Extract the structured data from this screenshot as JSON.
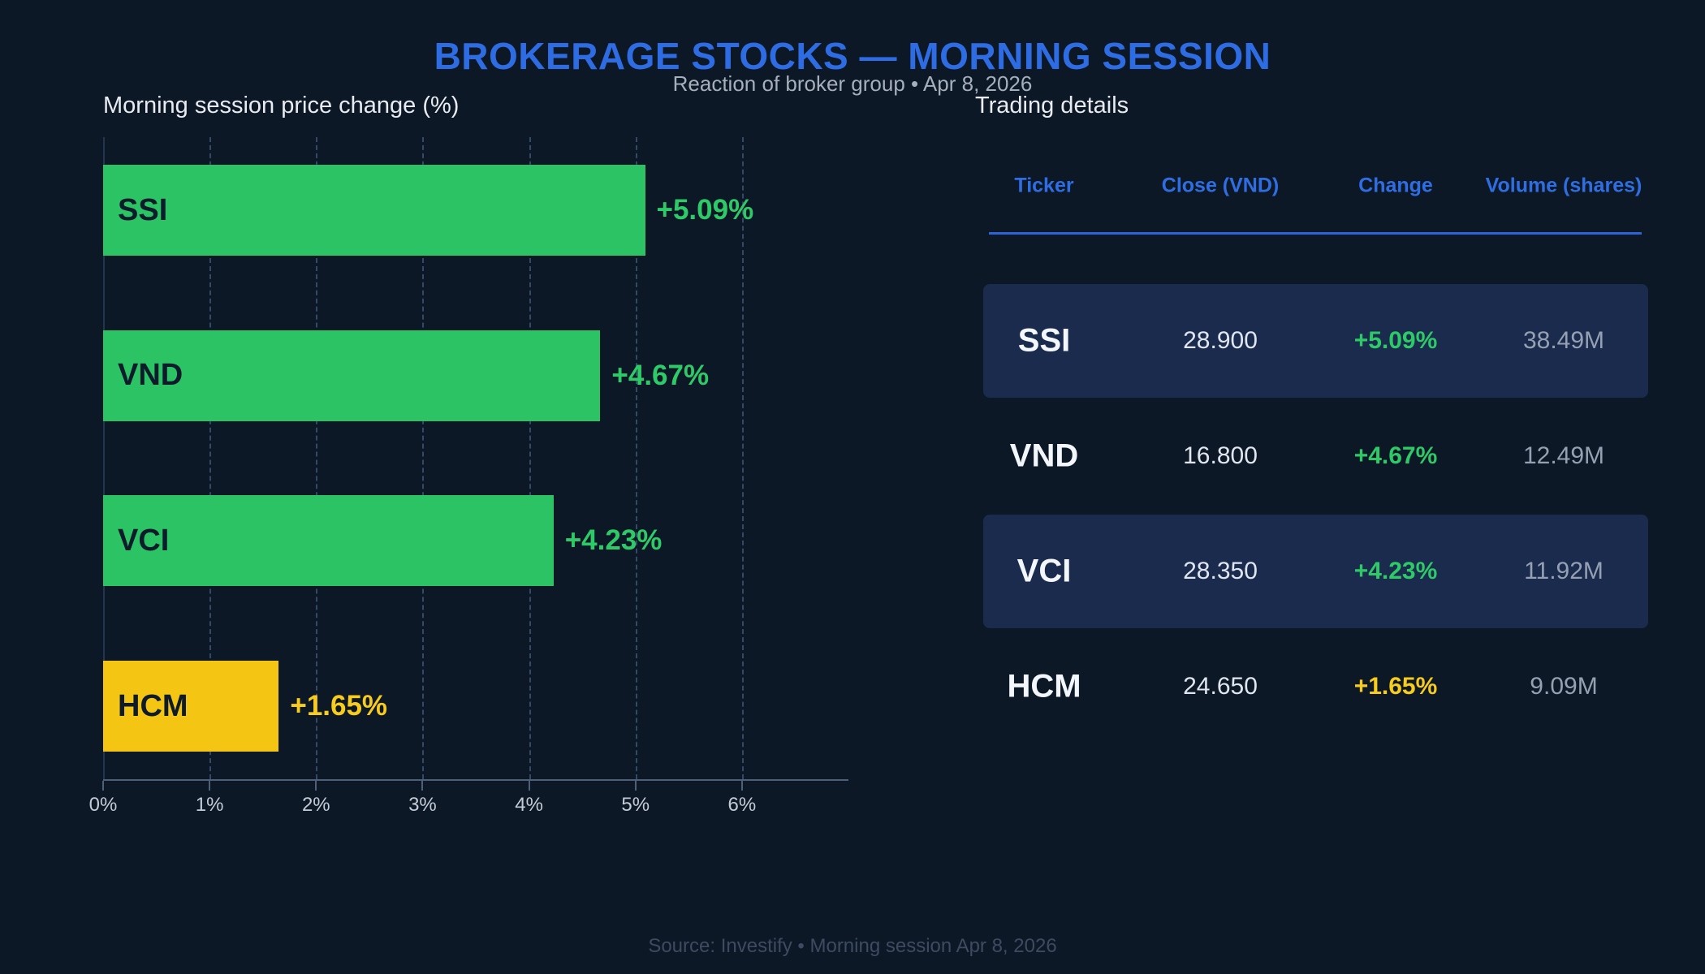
{
  "header": {
    "title": "BROKERAGE STOCKS — MORNING SESSION",
    "subtitle": "Reaction of broker group  •  Apr 8, 2026"
  },
  "chart_data": {
    "type": "bar",
    "orientation": "horizontal",
    "title": "Morning session price change (%)",
    "categories": [
      "SSI",
      "VND",
      "VCI",
      "HCM"
    ],
    "values": [
      5.09,
      4.67,
      4.23,
      1.65
    ],
    "value_labels": [
      "+5.09%",
      "+4.67%",
      "+4.23%",
      "+1.65%"
    ],
    "bar_colors": [
      "#2BC364",
      "#2BC364",
      "#2BC364",
      "#F5C514"
    ],
    "value_label_colors": [
      "#2ECA67",
      "#2ECA67",
      "#2ECA67",
      "#F8CC1C"
    ],
    "xlabel": "",
    "ylabel": "",
    "xlim": [
      0,
      7
    ],
    "xticks": [
      "0%",
      "1%",
      "2%",
      "3%",
      "4%",
      "5%",
      "6%"
    ],
    "grid": "vertical-dashed",
    "legend": "none"
  },
  "table": {
    "title": "Trading details",
    "columns": [
      "Ticker",
      "Close (VND)",
      "Change",
      "Volume (shares)"
    ],
    "rows": [
      {
        "ticker": "SSI",
        "close": "28.900",
        "change": "+5.09%",
        "volume": "38.49M",
        "highlight": true,
        "change_color": "green"
      },
      {
        "ticker": "VND",
        "close": "16.800",
        "change": "+4.67%",
        "volume": "12.49M",
        "highlight": false,
        "change_color": "green"
      },
      {
        "ticker": "VCI",
        "close": "28.350",
        "change": "+4.23%",
        "volume": "11.92M",
        "highlight": true,
        "change_color": "green"
      },
      {
        "ticker": "HCM",
        "close": "24.650",
        "change": "+1.65%",
        "volume": "9.09M",
        "highlight": false,
        "change_color": "yellow"
      }
    ]
  },
  "footer": {
    "text": "Source: Investify  •  Morning session Apr 8, 2026"
  },
  "colors": {
    "background": "#0D1826",
    "accent_blue": "#2E6CE4",
    "divider_blue": "#2D63D8",
    "bar_green": "#2BC364",
    "bar_yellow": "#F5C514",
    "text_green": "#2ECA67",
    "text_yellow": "#F8CC1C",
    "row_highlight": "#1A2B4D",
    "bar_label_text": "#0E1B2B"
  }
}
